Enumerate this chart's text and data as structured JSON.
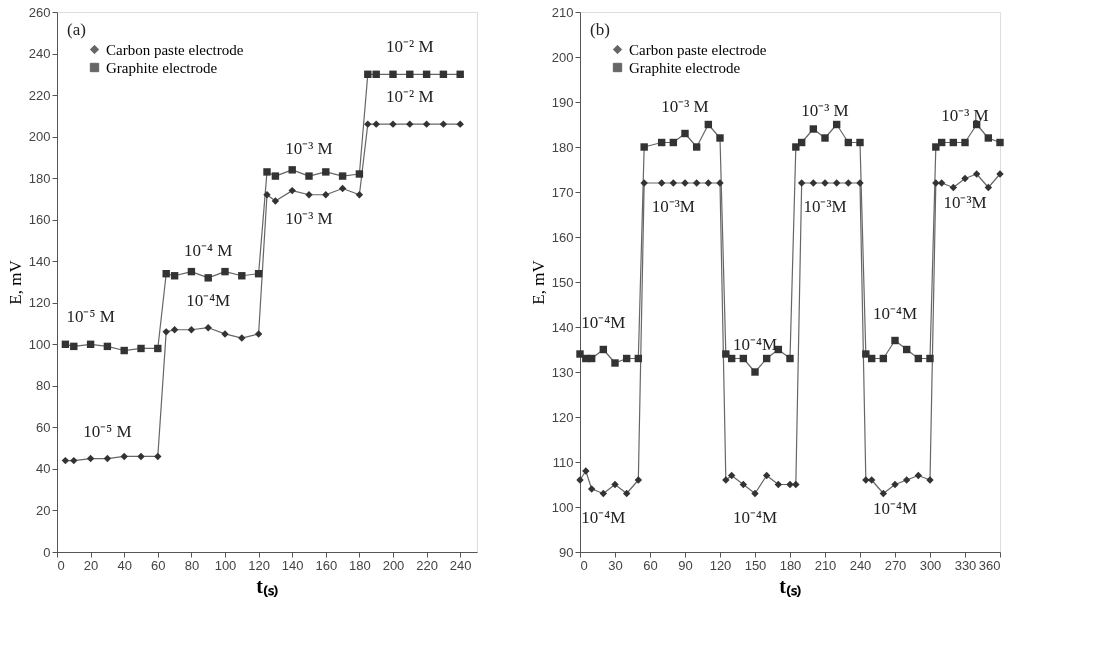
{
  "chart_data": [
    {
      "type": "line",
      "title": "(a)",
      "xlabel": "t₍ₛ₎",
      "ylabel": "E, mV",
      "xlim": [
        0,
        250
      ],
      "xticks": [
        0,
        20,
        40,
        60,
        80,
        100,
        120,
        140,
        160,
        180,
        200,
        220,
        240
      ],
      "ylim": [
        0,
        260
      ],
      "yticks": [
        0,
        20,
        40,
        60,
        80,
        100,
        120,
        140,
        160,
        180,
        200,
        220,
        240,
        260
      ],
      "grid": false,
      "legend": "top left",
      "series": [
        {
          "name": "Carbon paste electrode",
          "color": "#333333",
          "marker": "diamond",
          "x": [
            5,
            10,
            20,
            30,
            40,
            50,
            60,
            65,
            70,
            80,
            90,
            100,
            110,
            120,
            125,
            130,
            140,
            150,
            160,
            170,
            180,
            185,
            190,
            200,
            210,
            220,
            230,
            240
          ],
          "values": [
            44,
            44,
            45,
            45,
            46,
            46,
            46,
            106,
            107,
            107,
            108,
            105,
            103,
            105,
            172,
            169,
            174,
            172,
            172,
            175,
            172,
            206,
            206,
            206,
            206,
            206,
            206,
            206
          ]
        },
        {
          "name": "Graphite electrode",
          "color": "#333333",
          "marker": "square",
          "x": [
            5,
            10,
            20,
            30,
            40,
            50,
            60,
            65,
            70,
            80,
            90,
            100,
            110,
            120,
            125,
            130,
            140,
            150,
            160,
            170,
            180,
            185,
            190,
            200,
            210,
            220,
            230,
            240
          ],
          "values": [
            100,
            99,
            100,
            99,
            97,
            98,
            98,
            134,
            133,
            135,
            132,
            135,
            133,
            134,
            183,
            181,
            184,
            181,
            183,
            181,
            182,
            230,
            230,
            230,
            230,
            230,
            230,
            230
          ]
        }
      ],
      "annotations": [
        {
          "text": "10⁻⁵ M",
          "x": 20,
          "y": 100
        },
        {
          "text": "10⁻⁵ M",
          "x": 30,
          "y": 45
        },
        {
          "text": "10⁻⁴ M",
          "x": 90,
          "y": 132
        },
        {
          "text": "10⁻⁴M",
          "x": 90,
          "y": 108
        },
        {
          "text": "10⁻³ M",
          "x": 150,
          "y": 181
        },
        {
          "text": "10⁻³ M",
          "x": 150,
          "y": 172
        },
        {
          "text": "10⁻² M",
          "x": 210,
          "y": 230
        },
        {
          "text": "10⁻² M",
          "x": 210,
          "y": 206
        }
      ]
    },
    {
      "type": "line",
      "title": "(b)",
      "xlabel": "t₍ₛ₎",
      "ylabel": "E, mV",
      "xlim": [
        0,
        360
      ],
      "xticks": [
        0,
        30,
        60,
        90,
        120,
        150,
        180,
        210,
        240,
        270,
        300,
        330,
        360
      ],
      "ylim": [
        90,
        210
      ],
      "yticks": [
        90,
        100,
        110,
        120,
        130,
        140,
        150,
        160,
        170,
        180,
        190,
        200,
        210
      ],
      "grid": false,
      "legend": "top left",
      "series": [
        {
          "name": "Carbon paste electrode",
          "color": "#333333",
          "marker": "diamond",
          "x": [
            0,
            5,
            10,
            20,
            30,
            40,
            50,
            55,
            70,
            80,
            90,
            100,
            110,
            120,
            125,
            130,
            140,
            150,
            160,
            170,
            180,
            185,
            190,
            200,
            210,
            220,
            230,
            240,
            245,
            250,
            260,
            270,
            280,
            290,
            300,
            305,
            310,
            320,
            330,
            340,
            350,
            360
          ],
          "values": [
            106,
            108,
            104,
            103,
            105,
            103,
            106,
            172,
            172,
            172,
            172,
            172,
            172,
            172,
            106,
            107,
            105,
            103,
            107,
            105,
            105,
            105,
            172,
            172,
            172,
            172,
            172,
            172,
            106,
            106,
            103,
            105,
            106,
            107,
            106,
            172,
            172,
            171,
            173,
            174,
            171,
            174
          ]
        },
        {
          "name": "Graphite electrode",
          "color": "#333333",
          "marker": "square",
          "x": [
            0,
            5,
            10,
            20,
            30,
            40,
            50,
            55,
            70,
            80,
            90,
            100,
            110,
            120,
            125,
            130,
            140,
            150,
            160,
            170,
            180,
            185,
            190,
            200,
            210,
            220,
            230,
            240,
            245,
            250,
            260,
            270,
            280,
            290,
            300,
            305,
            310,
            320,
            330,
            340,
            350,
            360
          ],
          "values": [
            134,
            133,
            133,
            135,
            132,
            133,
            133,
            180,
            181,
            181,
            183,
            180,
            185,
            182,
            134,
            133,
            133,
            130,
            133,
            135,
            133,
            180,
            181,
            184,
            182,
            185,
            181,
            181,
            134,
            133,
            133,
            137,
            135,
            133,
            133,
            180,
            181,
            181,
            181,
            185,
            182,
            181
          ]
        }
      ],
      "annotations": [
        {
          "text": "10⁻⁴M",
          "x": 20,
          "y": 135
        },
        {
          "text": "10⁻⁴M",
          "x": 20,
          "y": 103
        },
        {
          "text": "10⁻³ M",
          "x": 90,
          "y": 183
        },
        {
          "text": "10⁻³M",
          "x": 80,
          "y": 172
        },
        {
          "text": "10⁻⁴M",
          "x": 150,
          "y": 130
        },
        {
          "text": "10⁻⁴M",
          "x": 150,
          "y": 103
        },
        {
          "text": "10⁻³ M",
          "x": 210,
          "y": 182
        },
        {
          "text": "10⁻³M",
          "x": 210,
          "y": 172
        },
        {
          "text": "10⁻⁴M",
          "x": 270,
          "y": 137
        },
        {
          "text": "10⁻⁴M",
          "x": 270,
          "y": 105
        },
        {
          "text": "10⁻³ M",
          "x": 330,
          "y": 181
        },
        {
          "text": "10⁻³M",
          "x": 330,
          "y": 173
        }
      ]
    }
  ]
}
